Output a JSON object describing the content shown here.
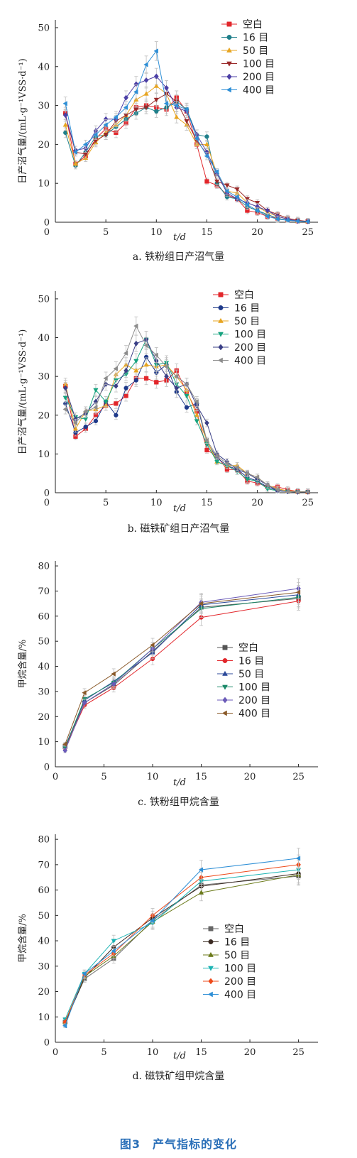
{
  "figure_caption": "图3　产气指标的变化",
  "colors": {
    "空白": "#e2262b",
    "16 目": "#1f7f8a",
    "50 目": "#e7a521",
    "100 目": "#9a2a2a",
    "200 目": "#4b3fa6",
    "400 目": "#2e8fd6"
  },
  "chart_data": [
    {
      "type": "line",
      "title": "a. 铁粉组日产沼气量",
      "xlabel": "t/d",
      "ylabel": "日产沼气量/(mL·g⁻¹VSS·d⁻¹)",
      "xlim": [
        0,
        26
      ],
      "ylim": [
        0,
        52
      ],
      "xticks": [
        5,
        10,
        15,
        20,
        25
      ],
      "yticks": [
        0,
        10,
        20,
        30,
        40,
        50
      ],
      "legend_position": "top-right",
      "x": [
        1,
        2,
        3,
        4,
        5,
        6,
        7,
        8,
        9,
        10,
        11,
        12,
        13,
        14,
        15,
        16,
        17,
        18,
        19,
        20,
        21,
        22,
        23,
        24,
        25
      ],
      "series": [
        {
          "name": "空白",
          "marker": "square",
          "color": "#e2262b",
          "values": [
            28,
            15,
            17,
            21.5,
            24,
            23,
            25.5,
            29.5,
            30,
            29.5,
            29,
            32,
            28.5,
            20,
            10.5,
            9.5,
            7,
            6,
            3,
            2.5,
            1.5,
            1,
            0.5,
            0.3,
            0.2
          ]
        },
        {
          "name": "16 目",
          "marker": "circle",
          "color": "#1f7f8a",
          "values": [
            23,
            14.5,
            18,
            22,
            22.5,
            24.5,
            26.5,
            28,
            29.5,
            28.5,
            29.5,
            31,
            29,
            22.5,
            22,
            10,
            6.5,
            6,
            4,
            3,
            2,
            1,
            0.5,
            0.3,
            0.2
          ]
        },
        {
          "name": "50 目",
          "marker": "triangle-up",
          "color": "#e7a521",
          "values": [
            25,
            15,
            16.5,
            20.5,
            23,
            25,
            27.5,
            31.5,
            33,
            35,
            33,
            27,
            25,
            20,
            20,
            12.5,
            8,
            7.5,
            5,
            4,
            2.5,
            1.5,
            0.8,
            0.3,
            0.2
          ]
        },
        {
          "name": "100 目",
          "marker": "triangle-down",
          "color": "#9a2a2a",
          "values": [
            27.5,
            18,
            17.5,
            21,
            22.5,
            26,
            27.5,
            29,
            29.5,
            31.5,
            33,
            31,
            26,
            21,
            17.5,
            10.5,
            9.5,
            8.5,
            6,
            5,
            3,
            2,
            1,
            0.5,
            0.2
          ]
        },
        {
          "name": "200 目",
          "marker": "diamond",
          "color": "#4b3fa6",
          "values": [
            27.5,
            18.5,
            19,
            23.5,
            26.5,
            26.5,
            32,
            35.5,
            36.5,
            37.5,
            34.5,
            29.5,
            28.5,
            22.5,
            18,
            12.5,
            7.5,
            6,
            5,
            4,
            3,
            1.5,
            0.8,
            0.3,
            0.2
          ]
        },
        {
          "name": "400 目",
          "marker": "triangle-left",
          "color": "#2e8fd6",
          "values": [
            30.5,
            18,
            20,
            22.5,
            25,
            27,
            29.5,
            33.5,
            40.5,
            44,
            30.5,
            30,
            29,
            21.5,
            17,
            13,
            8,
            6.5,
            4.5,
            3,
            1.5,
            0.8,
            0.5,
            0.3,
            0.2
          ]
        }
      ]
    },
    {
      "type": "line",
      "title": "b. 磁铁矿组日产沼气量",
      "xlabel": "t/d",
      "ylabel": "日产沼气量/(mL·g⁻¹VSS·d⁻¹)",
      "xlim": [
        0,
        26
      ],
      "ylim": [
        0,
        52
      ],
      "xticks": [
        5,
        10,
        15,
        20,
        25
      ],
      "yticks": [
        0,
        10,
        20,
        30,
        40,
        50
      ],
      "legend_position": "top-right",
      "x": [
        1,
        2,
        3,
        4,
        5,
        6,
        7,
        8,
        9,
        10,
        11,
        12,
        13,
        14,
        15,
        16,
        17,
        18,
        19,
        20,
        21,
        22,
        23,
        24,
        25
      ],
      "series": [
        {
          "name": "空白",
          "marker": "square",
          "color": "#e2262b",
          "values": [
            27.5,
            14.5,
            16.5,
            20,
            22.5,
            23,
            25,
            29.5,
            29.5,
            28.5,
            29,
            31.5,
            26,
            21,
            11,
            9.5,
            6,
            6,
            3,
            2.5,
            1.5,
            1.5,
            0.8,
            0.3,
            0.2
          ]
        },
        {
          "name": "16 目",
          "marker": "circle",
          "color": "#1f3a8a",
          "values": [
            23,
            15.5,
            17,
            18.5,
            23.5,
            20,
            27,
            29,
            35,
            31,
            33,
            26,
            22,
            23,
            13,
            9,
            7,
            6,
            4,
            3,
            1.5,
            0.5,
            0.3,
            0.2,
            0.2
          ]
        },
        {
          "name": "50 目",
          "marker": "triangle-up",
          "color": "#e7a521",
          "values": [
            28,
            16.5,
            21,
            21.5,
            22.5,
            30.5,
            33,
            31.5,
            33,
            32.5,
            33,
            30,
            26.5,
            20,
            13.5,
            8,
            7,
            7,
            5,
            4,
            2,
            1,
            0.5,
            0.3,
            0.2
          ]
        },
        {
          "name": "100 目",
          "marker": "triangle-down",
          "color": "#16a37f",
          "values": [
            24.5,
            19.5,
            19,
            26.5,
            23.5,
            29,
            30.5,
            34,
            39.5,
            33,
            33.5,
            28,
            25,
            18.5,
            12.5,
            8,
            7,
            5.5,
            3.5,
            3,
            1,
            0.5,
            0.3,
            0.2,
            0.2
          ]
        },
        {
          "name": "200 目",
          "marker": "diamond",
          "color": "#3a3f86",
          "values": [
            27,
            19,
            20.5,
            23.5,
            28,
            27.5,
            31.5,
            38.5,
            39.5,
            34,
            30,
            27,
            28,
            22.5,
            18,
            10,
            8,
            6,
            5,
            3.5,
            2,
            0.5,
            0.3,
            0.2,
            0.2
          ]
        },
        {
          "name": "400 目",
          "marker": "triangle-left",
          "color": "#8c8c8c",
          "values": [
            21.5,
            18,
            21,
            22,
            29.5,
            32,
            36,
            43,
            38,
            35.5,
            32.5,
            30,
            28,
            23.5,
            13.5,
            9.5,
            7.5,
            6.5,
            5,
            4,
            2,
            0.8,
            0.3,
            0.2,
            0.2
          ]
        }
      ]
    },
    {
      "type": "line",
      "title": "c. 铁粉组甲烷含量",
      "xlabel": "t/d",
      "ylabel": "甲烷含量/%",
      "xlim": [
        0,
        27
      ],
      "ylim": [
        0,
        82
      ],
      "xticks": [
        0,
        5,
        10,
        15,
        20,
        25
      ],
      "yticks": [
        0,
        10,
        20,
        30,
        40,
        50,
        60,
        70,
        80
      ],
      "legend_position": "center-right",
      "x": [
        1,
        3,
        6,
        10,
        15,
        25
      ],
      "series": [
        {
          "name": "空白",
          "marker": "square",
          "color": "#555555",
          "values": [
            8,
            25.5,
            32.5,
            46,
            63.5,
            67
          ]
        },
        {
          "name": "16 目",
          "marker": "circle",
          "color": "#e2262b",
          "values": [
            7.5,
            24.5,
            31.5,
            43,
            59.5,
            66
          ]
        },
        {
          "name": "50 目",
          "marker": "triangle-up",
          "color": "#2c4a9a",
          "values": [
            8,
            26.5,
            34,
            45.5,
            64.5,
            68.5
          ]
        },
        {
          "name": "100 目",
          "marker": "triangle-down",
          "color": "#1d8a6a",
          "values": [
            7.5,
            27,
            33.5,
            47,
            63,
            67.5
          ]
        },
        {
          "name": "200 目",
          "marker": "diamond",
          "color": "#6a5ab8",
          "values": [
            6.5,
            25.5,
            33,
            47,
            65.5,
            71
          ]
        },
        {
          "name": "400 目",
          "marker": "triangle-left",
          "color": "#8a5a2a",
          "values": [
            9,
            29.5,
            37,
            48.5,
            65,
            69.5
          ]
        }
      ]
    },
    {
      "type": "line",
      "title": "d. 磁铁矿组甲烷含量",
      "xlabel": "t/d",
      "ylabel": "甲烷含量/%",
      "xlim": [
        0,
        27
      ],
      "ylim": [
        0,
        82
      ],
      "xticks": [
        0,
        5,
        10,
        15,
        20,
        25
      ],
      "yticks": [
        0,
        10,
        20,
        30,
        40,
        50,
        60,
        70,
        80
      ],
      "legend_position": "center-right",
      "x": [
        1,
        3,
        6,
        10,
        15,
        25
      ],
      "series": [
        {
          "name": "空白",
          "marker": "square",
          "color": "#666666",
          "values": [
            8,
            25,
            33,
            48,
            62,
            65.5
          ]
        },
        {
          "name": "16 目",
          "marker": "circle",
          "color": "#3a2a22",
          "values": [
            7.5,
            25.5,
            37.5,
            49,
            61.5,
            66.5
          ]
        },
        {
          "name": "50 目",
          "marker": "triangle-up",
          "color": "#6b7a1a",
          "values": [
            8,
            26,
            34,
            47.5,
            59,
            66
          ]
        },
        {
          "name": "100 目",
          "marker": "triangle-down",
          "color": "#1ab3b3",
          "values": [
            9,
            27,
            40,
            47,
            63.5,
            68
          ]
        },
        {
          "name": "200 目",
          "marker": "diamond",
          "color": "#ee4a1a",
          "values": [
            8,
            26.5,
            35,
            50,
            65,
            70
          ]
        },
        {
          "name": "400 目",
          "marker": "triangle-left",
          "color": "#2e8fd6",
          "values": [
            6.5,
            27,
            36,
            48,
            68,
            72.5
          ]
        }
      ]
    }
  ]
}
